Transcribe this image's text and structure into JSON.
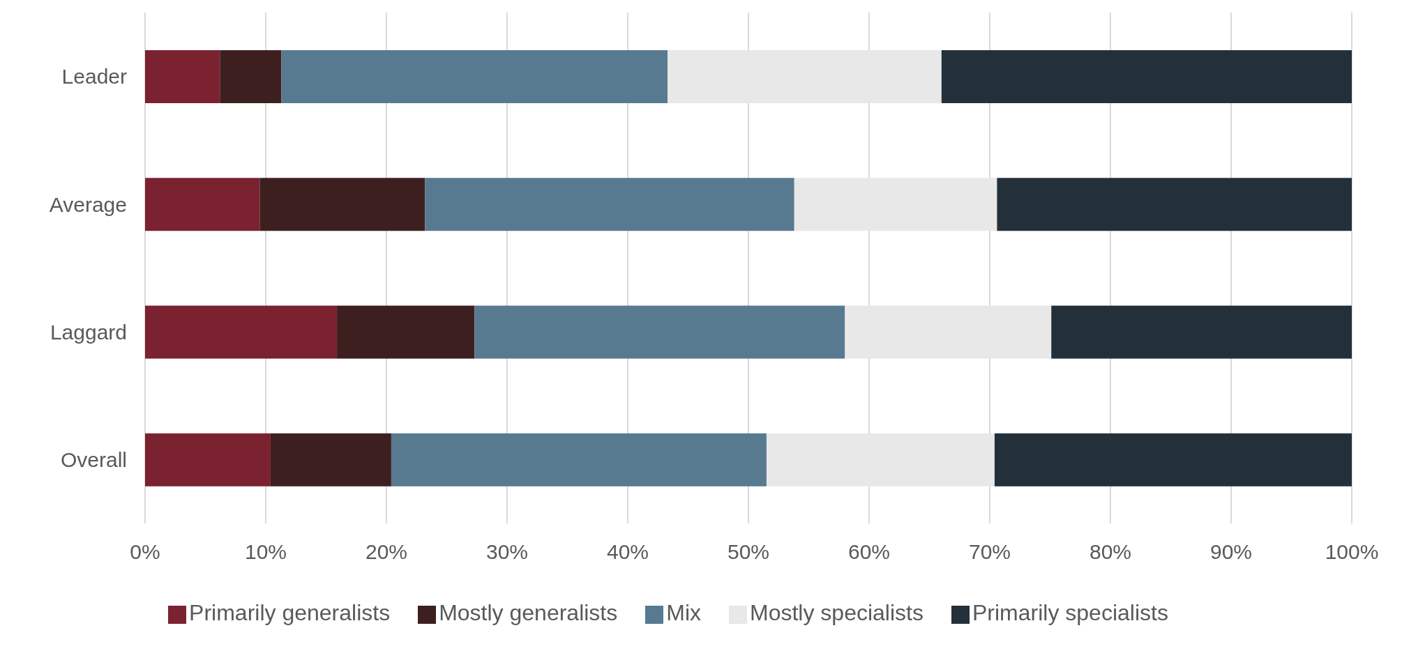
{
  "chart_data": {
    "type": "bar",
    "orientation": "horizontal",
    "stacked": true,
    "categories": [
      "Leader",
      "Average",
      "Laggard",
      "Overall"
    ],
    "series": [
      {
        "name": "Primarily generalists",
        "color": "#7a2230",
        "values": [
          6.2,
          9.5,
          15.9,
          10.4
        ]
      },
      {
        "name": "Mostly generalists",
        "color": "#3e1f20",
        "values": [
          5.1,
          13.7,
          11.4,
          10.0
        ]
      },
      {
        "name": "Mix",
        "color": "#577a90",
        "values": [
          32.0,
          30.6,
          30.7,
          31.1
        ]
      },
      {
        "name": "Mostly specialists",
        "color": "#e8e8e8",
        "values": [
          22.7,
          16.8,
          17.1,
          18.9
        ]
      },
      {
        "name": "Primarily specialists",
        "color": "#243039",
        "values": [
          34.0,
          29.4,
          24.9,
          29.6
        ]
      }
    ],
    "xlim": [
      0,
      100
    ],
    "xticks": [
      {
        "value": 0,
        "label": "0%"
      },
      {
        "value": 10,
        "label": "10%"
      },
      {
        "value": 20,
        "label": "20%"
      },
      {
        "value": 30,
        "label": "30%"
      },
      {
        "value": 40,
        "label": "40%"
      },
      {
        "value": 50,
        "label": "50%"
      },
      {
        "value": 60,
        "label": "60%"
      },
      {
        "value": 70,
        "label": "70%"
      },
      {
        "value": 80,
        "label": "80%"
      },
      {
        "value": 90,
        "label": "90%"
      },
      {
        "value": 100,
        "label": "100%"
      }
    ],
    "grid": "x",
    "legend": "bottom"
  }
}
